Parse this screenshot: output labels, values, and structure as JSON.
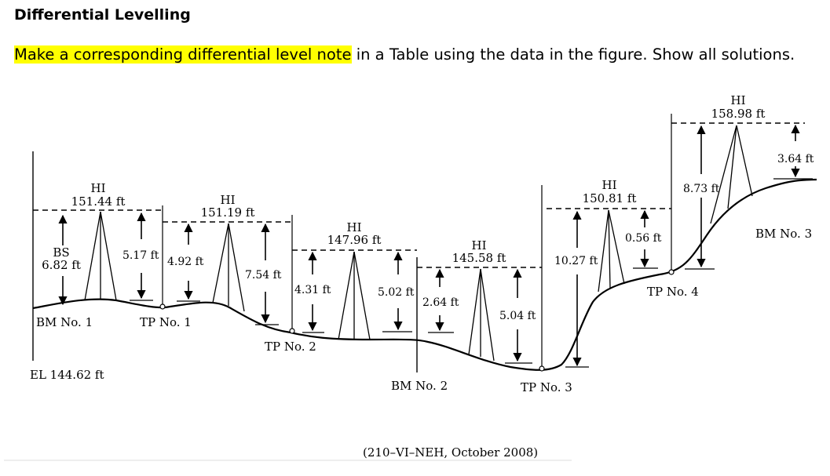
{
  "title": "Differential Levelling",
  "instruction": {
    "highlighted": "Make a corresponding differential level note",
    "rest": " in a Table using the data in the figure. Show all solutions."
  },
  "figure": {
    "station_labels": {
      "bm1": "BM No. 1",
      "el": "EL 144.62 ft",
      "tp1": "TP No. 1",
      "tp2": "TP No. 2",
      "bm2": "BM No. 2",
      "tp3": "TP No. 3",
      "tp4": "TP No. 4",
      "bm3": "BM No. 3"
    },
    "hi_labels": [
      {
        "word": "HI",
        "value": "151.44 ft"
      },
      {
        "word": "HI",
        "value": "151.19 ft"
      },
      {
        "word": "HI",
        "value": "147.96 ft"
      },
      {
        "word": "HI",
        "value": "145.58 ft"
      },
      {
        "word": "HI",
        "value": "150.81 ft"
      },
      {
        "word": "HI",
        "value": "158.98 ft"
      }
    ],
    "bs_label": {
      "word": "BS",
      "value": "6.82 ft"
    },
    "readings": {
      "r1": "5.17 ft",
      "r2": "4.92 ft",
      "r3": "7.54 ft",
      "r4": "4.31 ft",
      "r5": "5.02 ft",
      "r6": "2.64 ft",
      "r7": "5.04 ft",
      "r8": "10.27 ft",
      "r9": "0.56 ft",
      "r10": "8.73 ft",
      "r11": "3.64 ft"
    },
    "citation": "(210–VI–NEH, October 2008)"
  }
}
